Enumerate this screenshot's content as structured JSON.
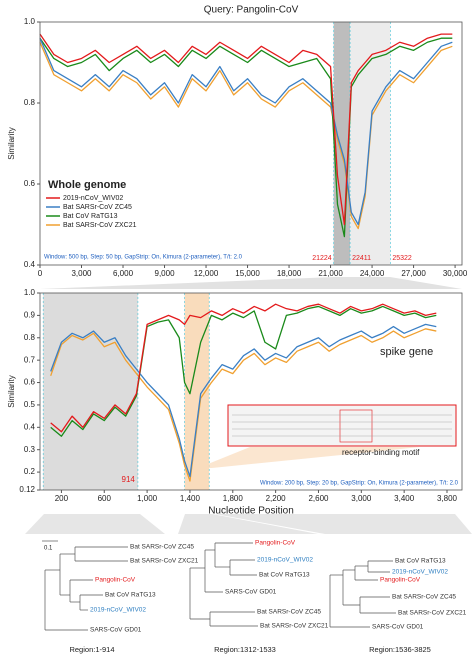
{
  "chart_data": [
    {
      "type": "line",
      "title": "Query: Pangolin-CoV",
      "ylabel": "Similarity",
      "legend_title": "Whole genome",
      "legend": "lower left",
      "note": "Window: 500 bp, Step: 50 bp, GapStrip: On, Kimura (2-parameter), T/t: 2.0",
      "x": [
        0,
        1000,
        2000,
        3000,
        4000,
        5000,
        6000,
        7000,
        8000,
        9000,
        10000,
        11000,
        12000,
        13000,
        14000,
        15000,
        16000,
        17000,
        18000,
        19000,
        20000,
        21000,
        21500,
        22000,
        22500,
        23000,
        23500,
        24000,
        25000,
        26000,
        27000,
        28000,
        29000,
        29800
      ],
      "series": [
        {
          "name": "2019-nCoV_WIV02",
          "color": "#e31a1c",
          "values": [
            0.97,
            0.92,
            0.9,
            0.91,
            0.93,
            0.9,
            0.92,
            0.94,
            0.91,
            0.93,
            0.9,
            0.94,
            0.92,
            0.95,
            0.93,
            0.91,
            0.94,
            0.92,
            0.9,
            0.93,
            0.92,
            0.89,
            0.62,
            0.5,
            0.85,
            0.88,
            0.9,
            0.92,
            0.93,
            0.95,
            0.94,
            0.96,
            0.97,
            0.97
          ]
        },
        {
          "name": "Bat SARSr-CoV ZC45",
          "color": "#3a7fc4",
          "values": [
            0.96,
            0.88,
            0.86,
            0.84,
            0.87,
            0.84,
            0.88,
            0.86,
            0.82,
            0.85,
            0.8,
            0.87,
            0.84,
            0.89,
            0.83,
            0.86,
            0.82,
            0.8,
            0.84,
            0.86,
            0.83,
            0.8,
            0.72,
            0.66,
            0.53,
            0.5,
            0.58,
            0.78,
            0.84,
            0.88,
            0.86,
            0.9,
            0.94,
            0.95
          ]
        },
        {
          "name": "Bat CoV RaTG13",
          "color": "#1a8a1a",
          "values": [
            0.96,
            0.91,
            0.89,
            0.9,
            0.92,
            0.88,
            0.91,
            0.93,
            0.9,
            0.92,
            0.89,
            0.93,
            0.91,
            0.94,
            0.92,
            0.9,
            0.93,
            0.91,
            0.89,
            0.9,
            0.91,
            0.86,
            0.55,
            0.47,
            0.84,
            0.87,
            0.89,
            0.91,
            0.92,
            0.94,
            0.93,
            0.95,
            0.96,
            0.96
          ]
        },
        {
          "name": "Bat SARSr-CoV ZXC21",
          "color": "#f0a030",
          "values": [
            0.95,
            0.87,
            0.85,
            0.83,
            0.86,
            0.83,
            0.87,
            0.85,
            0.81,
            0.84,
            0.79,
            0.86,
            0.83,
            0.88,
            0.82,
            0.85,
            0.81,
            0.79,
            0.83,
            0.85,
            0.82,
            0.79,
            0.71,
            0.65,
            0.52,
            0.49,
            0.57,
            0.77,
            0.83,
            0.87,
            0.85,
            0.89,
            0.93,
            0.94
          ]
        }
      ],
      "xlim": [
        0,
        30500
      ],
      "xticks": [
        0,
        {
          "value": 3000,
          "label": "3,000"
        },
        {
          "value": 6000,
          "label": "6,000"
        },
        {
          "value": 9000,
          "label": "9,000"
        },
        {
          "value": 12000,
          "label": "12,000"
        },
        {
          "value": 15000,
          "label": "15,000"
        },
        {
          "value": 18000,
          "label": "18,000"
        },
        {
          "value": 21000,
          "label": "21,000"
        },
        {
          "value": 24000,
          "label": "24,000"
        },
        {
          "value": 27000,
          "label": "27,000"
        },
        {
          "value": 30000,
          "label": "30,000"
        }
      ],
      "ylim": [
        0.4,
        1.0
      ],
      "yticks": [
        0.4,
        0.6,
        0.8,
        {
          "value": 1,
          "label": "1.0"
        }
      ],
      "regions": [
        {
          "start": 21224,
          "end": 22411,
          "color": "#bdbdbd"
        },
        {
          "start": 22411,
          "end": 25322,
          "color": "#ececec"
        }
      ]
    },
    {
      "type": "line",
      "xlabel": "Nucleotide Position",
      "ylabel": "Similarity",
      "label": "spike gene",
      "inset_label": "receptor-binding motif",
      "note": "Window: 200 bp, Step: 20 bp, GapStrip: On, Kimura (2-parameter), T/t: 2.0",
      "x": [
        100,
        200,
        300,
        400,
        500,
        600,
        700,
        800,
        900,
        1000,
        1100,
        1200,
        1300,
        1350,
        1400,
        1500,
        1600,
        1700,
        1800,
        1900,
        2000,
        2100,
        2200,
        2300,
        2400,
        2500,
        2600,
        2700,
        2800,
        2900,
        3000,
        3100,
        3200,
        3300,
        3400,
        3500,
        3600,
        3700
      ],
      "series": [
        {
          "color": "#e31a1c",
          "values": [
            0.42,
            0.38,
            0.45,
            0.4,
            0.47,
            0.44,
            0.5,
            0.46,
            0.55,
            0.86,
            0.88,
            0.9,
            0.88,
            0.86,
            0.9,
            0.89,
            0.92,
            0.9,
            0.93,
            0.91,
            0.94,
            0.92,
            0.95,
            0.93,
            0.92,
            0.94,
            0.95,
            0.93,
            0.91,
            0.94,
            0.92,
            0.93,
            0.95,
            0.93,
            0.91,
            0.92,
            0.9,
            0.91
          ]
        },
        {
          "color": "#3a7fc4",
          "values": [
            0.65,
            0.78,
            0.82,
            0.8,
            0.83,
            0.78,
            0.8,
            0.72,
            0.66,
            0.6,
            0.55,
            0.5,
            0.35,
            0.25,
            0.18,
            0.55,
            0.62,
            0.68,
            0.66,
            0.72,
            0.75,
            0.7,
            0.73,
            0.71,
            0.76,
            0.78,
            0.8,
            0.76,
            0.79,
            0.81,
            0.83,
            0.8,
            0.82,
            0.85,
            0.82,
            0.84,
            0.86,
            0.85
          ]
        },
        {
          "color": "#1a8a1a",
          "values": [
            0.4,
            0.36,
            0.43,
            0.39,
            0.46,
            0.43,
            0.49,
            0.45,
            0.54,
            0.85,
            0.87,
            0.88,
            0.8,
            0.6,
            0.55,
            0.78,
            0.9,
            0.88,
            0.91,
            0.89,
            0.92,
            0.78,
            0.75,
            0.9,
            0.91,
            0.93,
            0.94,
            0.92,
            0.9,
            0.93,
            0.91,
            0.92,
            0.94,
            0.92,
            0.9,
            0.91,
            0.89,
            0.9
          ]
        },
        {
          "color": "#f0a030",
          "values": [
            0.63,
            0.77,
            0.81,
            0.79,
            0.82,
            0.76,
            0.78,
            0.7,
            0.64,
            0.58,
            0.53,
            0.48,
            0.33,
            0.23,
            0.16,
            0.53,
            0.6,
            0.66,
            0.64,
            0.7,
            0.73,
            0.68,
            0.71,
            0.69,
            0.74,
            0.76,
            0.78,
            0.74,
            0.77,
            0.79,
            0.81,
            0.78,
            0.8,
            0.83,
            0.8,
            0.82,
            0.84,
            0.83
          ]
        }
      ],
      "xlim": [
        0,
        3940
      ],
      "xticks": [
        200,
        600,
        {
          "value": 1000,
          "label": "1,000"
        },
        {
          "value": 1400,
          "label": "1,400"
        },
        {
          "value": 1800,
          "label": "1,800"
        },
        {
          "value": 2200,
          "label": "2,200"
        },
        {
          "value": 2600,
          "label": "2,600"
        },
        {
          "value": 3000,
          "label": "3,000"
        },
        {
          "value": 3400,
          "label": "3,400"
        },
        {
          "value": 3800,
          "label": "3,800"
        }
      ],
      "ylim": [
        0.12,
        1.0
      ],
      "yticks": [
        0.12,
        0.2,
        0.3,
        0.4,
        0.5,
        0.6,
        0.7,
        0.8,
        0.9,
        {
          "value": 1,
          "label": "1.0"
        }
      ],
      "regions": [
        {
          "start": 30,
          "end": 914,
          "color": "#dcdcdc"
        },
        {
          "start": 1350,
          "end": 1580,
          "color": "#f9dcbc"
        }
      ]
    }
  ],
  "trees": [
    {
      "scale": "0.1",
      "region": "Region:1-914",
      "leaves": [
        {
          "label": "Bat SARSr-CoV ZC45",
          "color": "#333333"
        },
        {
          "label": "Bat SARSr-CoV ZXC21",
          "color": "#333333"
        },
        {
          "label": "Pangolin-CoV",
          "color": "#e31a1c"
        },
        {
          "label": "Bat CoV RaTG13",
          "color": "#333333"
        },
        {
          "label": "2019-nCoV_WIV02",
          "color": "#2f7fc1"
        },
        {
          "label": "SARS-CoV GD01",
          "color": "#333333"
        }
      ]
    },
    {
      "region": "Region:1312-1533",
      "leaves": [
        {
          "label": "Pangolin-CoV",
          "color": "#e31a1c"
        },
        {
          "label": "2019-nCoV_WIV02",
          "color": "#2f7fc1"
        },
        {
          "label": "Bat CoV RaTG13",
          "color": "#333333"
        },
        {
          "label": "SARS-CoV GD01",
          "color": "#333333"
        },
        {
          "label": "Bat SARSr-CoV ZC45",
          "color": "#333333"
        },
        {
          "label": "Bat SARSr-CoV ZXC21",
          "color": "#333333"
        }
      ]
    },
    {
      "region": "Region:1536-3825",
      "leaves": [
        {
          "label": "Bat CoV RaTG13",
          "color": "#333333"
        },
        {
          "label": "2019-nCoV_WIV02",
          "color": "#2f7fc1"
        },
        {
          "label": "Pangolin-CoV",
          "color": "#e31a1c"
        },
        {
          "label": "Bat SARSr-CoV ZC45",
          "color": "#333333"
        },
        {
          "label": "Bat SARSr-CoV ZXC21",
          "color": "#333333"
        },
        {
          "label": "SARS-CoV GD01",
          "color": "#333333"
        }
      ]
    }
  ]
}
